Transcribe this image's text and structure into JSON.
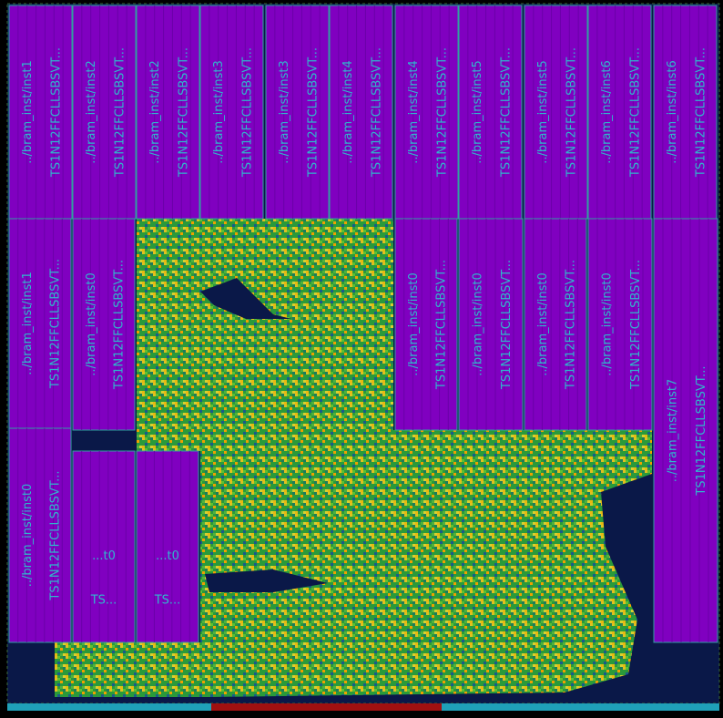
{
  "macros": [
    {
      "lines": [
        "../bram_inst/inst1",
        "TS1N12FFCLLSBSVT..."
      ]
    },
    {
      "lines": [
        "../bram_inst/inst2",
        "TS1N12FFCLLSBSVT..."
      ]
    },
    {
      "lines": [
        "../bram_inst/inst2",
        "TS1N12FFCLLSBSVT..."
      ]
    },
    {
      "lines": [
        "../bram_inst/inst3",
        "TS1N12FFCLLSBSVT..."
      ]
    },
    {
      "lines": [
        "../bram_inst/inst3",
        "TS1N12FFCLLSBSVT..."
      ]
    },
    {
      "lines": [
        "../bram_inst/inst4",
        "TS1N12FFCLLSBSVT..."
      ]
    },
    {
      "lines": [
        "../bram_inst/inst4",
        "TS1N12FFCLLSBSVT..."
      ]
    },
    {
      "lines": [
        "../bram_inst/inst5",
        "TS1N12FFCLLSBSVT..."
      ]
    },
    {
      "lines": [
        "../bram_inst/inst5",
        "TS1N12FFCLLSBSVT..."
      ]
    },
    {
      "lines": [
        "../bram_inst/inst6",
        "TS1N12FFCLLSBSVT..."
      ]
    },
    {
      "lines": [
        "../bram_inst/inst6",
        "TS1N12FFCLLSBSVT..."
      ]
    },
    {
      "lines": [
        "../bram_inst/inst1",
        "TS1N12FFCLLSBSVT..."
      ]
    },
    {
      "lines": [
        "../bram_inst/inst0",
        "TS1N12FFCLLSBSVT..."
      ]
    },
    {
      "lines": [
        "../bram_inst/inst0",
        "TS1N12FFCLLSBSVT..."
      ]
    },
    {
      "lines": [
        "../bram_inst/inst0",
        "TS1N12FFCLLSBSVT..."
      ]
    },
    {
      "lines": [
        "../bram_inst/inst0",
        "TS1N12FFCLLSBSVT..."
      ]
    },
    {
      "lines": [
        "../bram_inst/inst0",
        "TS1N12FFCLLSBSVT..."
      ]
    },
    {
      "lines": [
        "../bram_inst/inst7",
        "TS1N12FFCLLSBSVT..."
      ]
    },
    {
      "lines": [
        "../bram_inst/inst0",
        "TS1N12FFCLLSBSVT..."
      ]
    },
    {
      "lines": [
        "...t0",
        "TS..."
      ]
    },
    {
      "lines": [
        "...t0",
        "TS..."
      ]
    }
  ]
}
